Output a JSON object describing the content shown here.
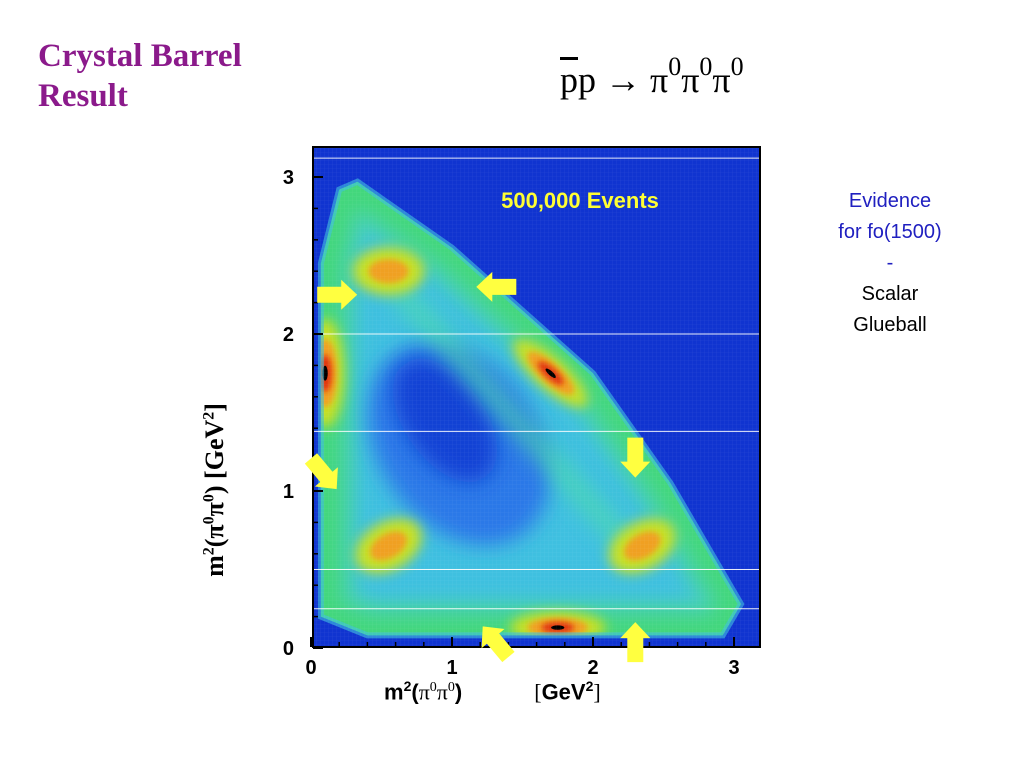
{
  "slide": {
    "title_line1": "Crystal Barrel",
    "title_line2": "Result",
    "title_color": "#8b1a8b",
    "reaction": {
      "pbar": "p",
      "p": "p",
      "arrow": " → ",
      "pi": "π",
      "zero": "0"
    },
    "evidence": {
      "line1": "Evidence",
      "line2": "for fo(1500)",
      "line3": "-",
      "line4": "Scalar",
      "line5": "Glueball",
      "color_blue": "#2020c0",
      "color_black": "#000000"
    }
  },
  "chart_data": {
    "type": "heatmap",
    "title": "",
    "annotation": "500,000 Events",
    "annotation_color": "#ffff33",
    "xlabel": {
      "m2": "m",
      "two": "2",
      "open": "(",
      "pi": "π",
      "zero": "0",
      "close": ")",
      "unit_open": "[",
      "unit": "GeV",
      "unit_close": "]"
    },
    "ylabel": {
      "text_a": "m",
      "text_b": "(π",
      "text_c": "π",
      "text_d": ")   [GeV",
      "text_e": "]",
      "sup2": "2",
      "sup0": "0"
    },
    "xlim": [
      0,
      3.2
    ],
    "ylim": [
      0,
      3.2
    ],
    "xticks": [
      "0",
      "1",
      "2",
      "3"
    ],
    "yticks": [
      "0",
      "1",
      "2",
      "3"
    ],
    "xtick_values": [
      0,
      1,
      2,
      3
    ],
    "ytick_values": [
      0,
      1,
      2,
      3
    ],
    "background_color": "#1034d0",
    "colormap": [
      "#1034d0",
      "#2a78e8",
      "#3fc0e0",
      "#4fe0a0",
      "#38d040",
      "#c8e020",
      "#f0a020",
      "#e03010",
      "#000000"
    ],
    "kinematic_boundary": [
      [
        0.07,
        0.95
      ],
      [
        0.07,
        2.45
      ],
      [
        0.2,
        2.92
      ],
      [
        0.33,
        2.97
      ],
      [
        1.0,
        2.55
      ],
      [
        2.0,
        1.75
      ],
      [
        2.55,
        1.05
      ],
      [
        3.05,
        0.28
      ],
      [
        2.92,
        0.08
      ],
      [
        0.4,
        0.08
      ],
      [
        0.07,
        0.2
      ]
    ],
    "hot_spots": [
      {
        "x": 0.1,
        "y": 1.75,
        "intensity": "high"
      },
      {
        "x": 1.75,
        "y": 0.13,
        "intensity": "high"
      },
      {
        "x": 1.7,
        "y": 1.75,
        "intensity": "high"
      },
      {
        "x": 0.55,
        "y": 2.4,
        "intensity": "medium"
      },
      {
        "x": 0.55,
        "y": 0.65,
        "intensity": "medium"
      },
      {
        "x": 2.35,
        "y": 0.65,
        "intensity": "medium"
      }
    ],
    "horizontal_lines_y": [
      0.25,
      0.5,
      1.38,
      2.0,
      3.12
    ],
    "arrows": [
      {
        "x": 0.2,
        "y": 2.25,
        "dir": "right"
      },
      {
        "x": 1.3,
        "y": 2.3,
        "dir": "left"
      },
      {
        "x": 0.1,
        "y": 1.1,
        "dir": "down-right"
      },
      {
        "x": 2.3,
        "y": 1.2,
        "dir": "down"
      },
      {
        "x": 1.3,
        "y": 0.05,
        "dir": "up-left"
      },
      {
        "x": 2.3,
        "y": 0.05,
        "dir": "up"
      }
    ],
    "arrow_color": "#ffff40"
  }
}
